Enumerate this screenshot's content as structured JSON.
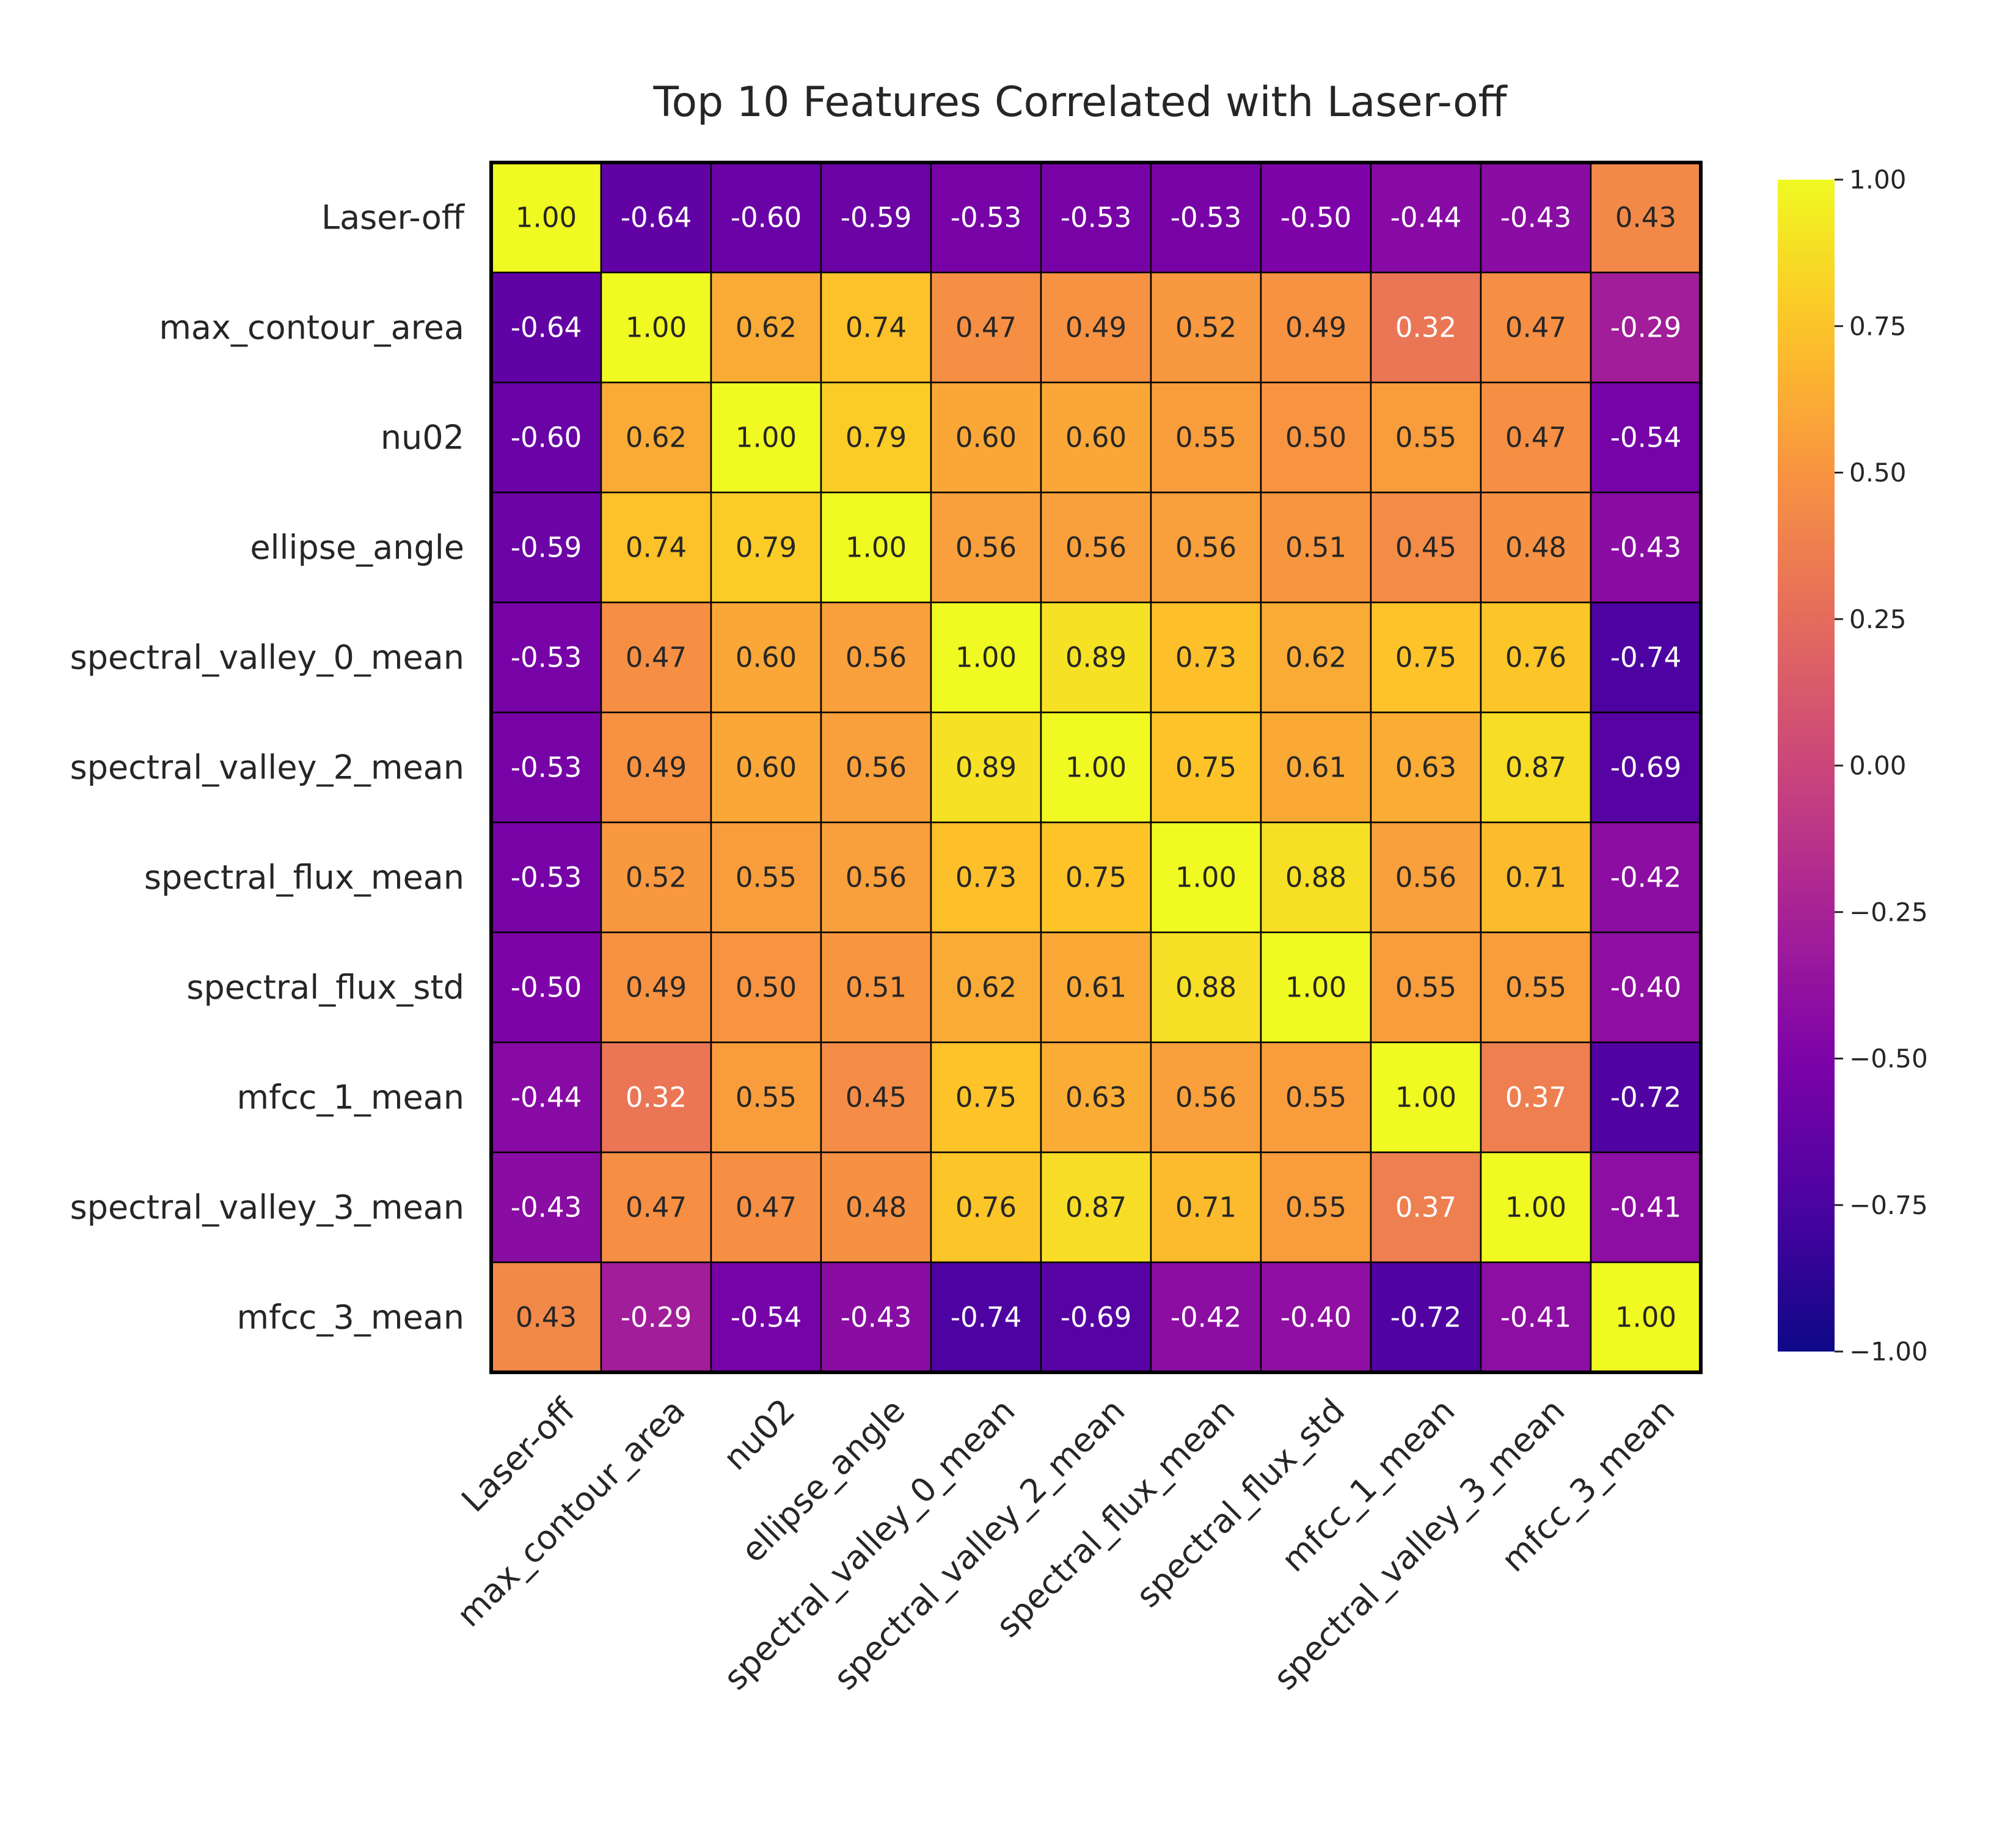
{
  "chart_data": {
    "type": "heatmap",
    "title": "Top 10 Features Correlated with Laser-off",
    "labels": [
      "Laser-off",
      "max_contour_area",
      "nu02",
      "ellipse_angle",
      "spectral_valley_0_mean",
      "spectral_valley_2_mean",
      "spectral_flux_mean",
      "spectral_flux_std",
      "mfcc_1_mean",
      "spectral_valley_3_mean",
      "mfcc_3_mean"
    ],
    "values": [
      [
        1.0,
        -0.64,
        -0.6,
        -0.59,
        -0.53,
        -0.53,
        -0.53,
        -0.5,
        -0.44,
        -0.43,
        0.43
      ],
      [
        -0.64,
        1.0,
        0.62,
        0.74,
        0.47,
        0.49,
        0.52,
        0.49,
        0.32,
        0.47,
        -0.29
      ],
      [
        -0.6,
        0.62,
        1.0,
        0.79,
        0.6,
        0.6,
        0.55,
        0.5,
        0.55,
        0.47,
        -0.54
      ],
      [
        -0.59,
        0.74,
        0.79,
        1.0,
        0.56,
        0.56,
        0.56,
        0.51,
        0.45,
        0.48,
        -0.43
      ],
      [
        -0.53,
        0.47,
        0.6,
        0.56,
        1.0,
        0.89,
        0.73,
        0.62,
        0.75,
        0.76,
        -0.74
      ],
      [
        -0.53,
        0.49,
        0.6,
        0.56,
        0.89,
        1.0,
        0.75,
        0.61,
        0.63,
        0.87,
        -0.69
      ],
      [
        -0.53,
        0.52,
        0.55,
        0.56,
        0.73,
        0.75,
        1.0,
        0.88,
        0.56,
        0.71,
        -0.42
      ],
      [
        -0.5,
        0.49,
        0.5,
        0.51,
        0.62,
        0.61,
        0.88,
        1.0,
        0.55,
        0.55,
        -0.4
      ],
      [
        -0.44,
        0.32,
        0.55,
        0.45,
        0.75,
        0.63,
        0.56,
        0.55,
        1.0,
        0.37,
        -0.72
      ],
      [
        -0.43,
        0.47,
        0.47,
        0.48,
        0.76,
        0.87,
        0.71,
        0.55,
        0.37,
        1.0,
        -0.41
      ],
      [
        0.43,
        -0.29,
        -0.54,
        -0.43,
        -0.74,
        -0.69,
        -0.42,
        -0.4,
        -0.72,
        -0.41,
        1.0
      ]
    ],
    "value_format": "2 decimals",
    "colorscale": "plasma",
    "vmin": -1.0,
    "vmax": 1.0,
    "colorbar_ticks": [
      "1.00",
      "0.75",
      "0.50",
      "0.25",
      "0.00",
      "−0.25",
      "−0.50",
      "−0.75",
      "−1.00"
    ],
    "colorbar_tick_values": [
      1.0,
      0.75,
      0.5,
      0.25,
      0.0,
      -0.25,
      -0.5,
      -0.75,
      -1.0
    ],
    "colorbar_position": "right",
    "x_tick_rotation": "45 degrees",
    "grid": false
  }
}
